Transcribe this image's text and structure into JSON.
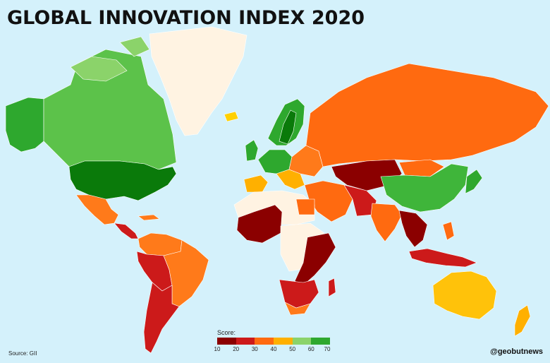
{
  "title": "GLOBAL INNOVATION INDEX 2020",
  "source": "Source: GII",
  "credit": "@geobutnews",
  "legend": {
    "title": "Score:",
    "ticks": [
      "10",
      "20",
      "30",
      "40",
      "50",
      "60",
      "70"
    ],
    "colors": [
      "#8b0000",
      "#cc1a1a",
      "#ff6a10",
      "#ffb000",
      "#8bd36a",
      "#2ea82e",
      "#0a7a0a"
    ]
  },
  "palette": {
    "ocean": "#d4f1fb",
    "no_data": "#fff3e2",
    "score_10_20": "#8b0000",
    "score_20_30": "#cc1a1a",
    "score_30_40": "#ff6a10",
    "score_40_50": "#ffb000",
    "score_50_60": "#8bd36a",
    "score_60_70": "#2ea82e",
    "score_70_plus": "#0a7a0a"
  }
}
